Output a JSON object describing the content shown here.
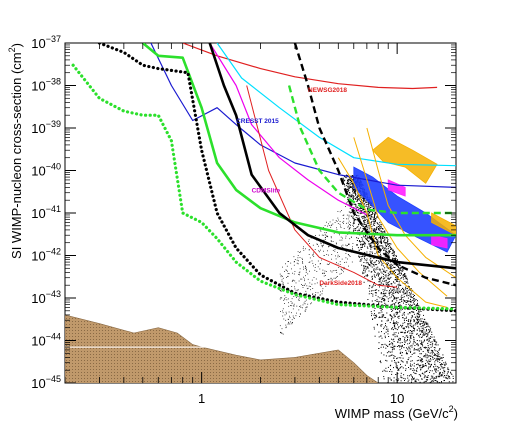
{
  "chart_data": {
    "type": "line",
    "title": "",
    "xlabel": "WIMP mass (GeV/c²)",
    "xlabel_main": "WIMP mass (GeV/c",
    "xlabel_sup": "2",
    "xlabel_tail": ")",
    "ylabel": "SI WIMP-nucleon cross-section (cm²)",
    "ylabel_main": "SI WIMP-nucleon cross-section (cm",
    "ylabel_sup": "2",
    "ylabel_tail": ")",
    "x_scale": "log",
    "y_scale": "log",
    "xlim": [
      0.2,
      20
    ],
    "ylim": [
      1e-45,
      1e-37
    ],
    "grid": false,
    "x_ticks": [
      {
        "v": 1,
        "label": "1"
      },
      {
        "v": 10,
        "label": "10"
      }
    ],
    "y_ticks": [
      {
        "v": 1e-37,
        "base": "10",
        "exp": "−37"
      },
      {
        "v": 1e-38,
        "base": "10",
        "exp": "−38"
      },
      {
        "v": 1e-39,
        "base": "10",
        "exp": "−39"
      },
      {
        "v": 1e-40,
        "base": "10",
        "exp": "−40"
      },
      {
        "v": 1e-41,
        "base": "10",
        "exp": "−41"
      },
      {
        "v": 1e-42,
        "base": "10",
        "exp": "−42"
      },
      {
        "v": 1e-43,
        "base": "10",
        "exp": "−43"
      },
      {
        "v": 1e-44,
        "base": "10",
        "exp": "−44"
      },
      {
        "v": 1e-45,
        "base": "10",
        "exp": "−45"
      }
    ],
    "labels": [
      {
        "text": "NEWSG2018",
        "color": "#e02020",
        "x": 3.5,
        "y": 7e-39
      },
      {
        "text": "CRESST 2015",
        "color": "#1a1ad0",
        "x": 1.5,
        "y": 1.3e-39
      },
      {
        "text": "CDMSlite",
        "color": "#cc00cc",
        "x": 1.8,
        "y": 3e-41
      },
      {
        "text": "DarkSide2018",
        "color": "#e02020",
        "x": 4.0,
        "y": 2e-43
      }
    ],
    "series": [
      {
        "color": "#1a1ad0",
        "style": "solid",
        "width": 1.2,
        "points": [
          [
            0.55,
            1e-37
          ],
          [
            0.7,
            1e-38
          ],
          [
            0.9,
            1.5e-39
          ],
          [
            1.2,
            3e-39
          ],
          [
            1.5,
            1.2e-39
          ],
          [
            2,
            4e-40
          ],
          [
            3,
            1.5e-40
          ],
          [
            5,
            8e-41
          ],
          [
            10,
            4.5e-41
          ],
          [
            20,
            4e-41
          ]
        ]
      },
      {
        "color": "#e02020",
        "style": "solid",
        "width": 1.2,
        "points": [
          [
            0.8,
            1e-37
          ],
          [
            1.2,
            5e-38
          ],
          [
            2,
            2.5e-38
          ],
          [
            3,
            1.6e-38
          ],
          [
            5,
            1.1e-38
          ],
          [
            8,
            9e-39
          ],
          [
            12,
            8.5e-39
          ],
          [
            16,
            9e-39
          ]
        ]
      },
      {
        "color": "#00e0ff",
        "style": "solid",
        "width": 1.2,
        "points": [
          [
            1.2,
            1e-37
          ],
          [
            1.6,
            1.5e-38
          ],
          [
            2.5,
            3e-39
          ],
          [
            4,
            6e-40
          ],
          [
            6,
            2e-40
          ],
          [
            10,
            1.4e-40
          ],
          [
            20,
            1.3e-40
          ]
        ]
      },
      {
        "color": "#ee00ee",
        "style": "solid",
        "width": 1.2,
        "points": [
          [
            1.1,
            1e-37
          ],
          [
            1.5,
            1e-38
          ],
          [
            1.8,
            1.2e-39
          ],
          [
            2.5,
            2e-40
          ],
          [
            3.5,
            6e-41
          ],
          [
            5,
            2e-41
          ],
          [
            7,
            9e-42
          ]
        ]
      },
      {
        "color": "#e02020",
        "style": "solid",
        "width": 1.0,
        "points": [
          [
            1.7,
            1e-38
          ],
          [
            2.2,
            1e-40
          ],
          [
            3,
            4e-42
          ],
          [
            4,
            9e-43
          ],
          [
            6,
            4e-43
          ],
          [
            8,
            2e-43
          ],
          [
            10,
            1.8e-43
          ]
        ]
      },
      {
        "color": "#f5b000",
        "style": "solid",
        "width": 1.0,
        "points": [
          [
            5,
            2e-40
          ],
          [
            6,
            5e-41
          ],
          [
            7,
            1e-41
          ],
          [
            8,
            1e-42
          ],
          [
            10,
            3e-43
          ],
          [
            14,
            8e-44
          ],
          [
            18,
            6e-44
          ]
        ]
      },
      {
        "color": "#f5b000",
        "style": "solid",
        "width": 1.0,
        "points": [
          [
            6,
            6e-40
          ],
          [
            7,
            6e-41
          ],
          [
            8,
            8e-42
          ],
          [
            10,
            1.5e-42
          ],
          [
            13,
            4e-43
          ],
          [
            18,
            1.1e-43
          ]
        ]
      },
      {
        "color": "#f5b000",
        "style": "solid",
        "width": 1.0,
        "points": [
          [
            7,
            1e-39
          ],
          [
            8,
            1e-40
          ],
          [
            9,
            1.5e-41
          ],
          [
            11,
            3e-42
          ],
          [
            14,
            9e-43
          ],
          [
            20,
            3e-43
          ]
        ]
      },
      {
        "color": "#2ce02c",
        "style": "solid",
        "width": 2.6,
        "points": [
          [
            0.5,
            1e-37
          ],
          [
            0.6,
            5e-38
          ],
          [
            0.8,
            4.5e-38
          ],
          [
            1,
            3e-39
          ],
          [
            1.2,
            1.5e-40
          ],
          [
            1.5,
            3.5e-41
          ],
          [
            2,
            1.3e-41
          ],
          [
            3,
            6e-42
          ],
          [
            5,
            3.5e-42
          ],
          [
            10,
            3e-42
          ],
          [
            20,
            3e-42
          ]
        ]
      },
      {
        "color": "#000000",
        "style": "solid",
        "width": 2.6,
        "points": [
          [
            1.1,
            1e-37
          ],
          [
            1.3,
            1e-38
          ],
          [
            1.5,
            2e-39
          ],
          [
            1.8,
            8e-41
          ],
          [
            2.5,
            1e-41
          ],
          [
            3.5,
            3e-42
          ],
          [
            5,
            1.5e-42
          ],
          [
            10,
            7e-43
          ],
          [
            20,
            5e-43
          ]
        ]
      },
      {
        "color": "#000000",
        "style": "dotted",
        "width": 3.2,
        "points": [
          [
            0.3,
            1e-37
          ],
          [
            0.4,
            6e-38
          ],
          [
            0.5,
            3e-38
          ],
          [
            0.6,
            2.5e-38
          ],
          [
            0.85,
            2e-38
          ],
          [
            1,
            3e-40
          ],
          [
            1.2,
            1e-41
          ],
          [
            1.5,
            1.5e-42
          ],
          [
            2,
            3.5e-43
          ],
          [
            3,
            1.3e-43
          ],
          [
            5,
            8e-44
          ],
          [
            10,
            6e-44
          ],
          [
            20,
            5e-44
          ]
        ]
      },
      {
        "color": "#2ce02c",
        "style": "dotted",
        "width": 3.2,
        "points": [
          [
            0.22,
            3e-38
          ],
          [
            0.3,
            5e-39
          ],
          [
            0.4,
            2.5e-39
          ],
          [
            0.5,
            2e-39
          ],
          [
            0.6,
            2e-39
          ],
          [
            0.7,
            5e-40
          ],
          [
            0.8,
            1e-41
          ],
          [
            1,
            6e-42
          ],
          [
            1.2,
            2.5e-42
          ],
          [
            1.5,
            7e-43
          ],
          [
            2,
            2.5e-43
          ],
          [
            3,
            1.2e-43
          ],
          [
            5,
            7e-44
          ],
          [
            10,
            6e-44
          ],
          [
            20,
            5.5e-44
          ]
        ]
      },
      {
        "color": "#000000",
        "style": "dashed",
        "width": 2.4,
        "points": [
          [
            3,
            1e-37
          ],
          [
            3.5,
            1e-38
          ],
          [
            4,
            1e-39
          ],
          [
            5,
            1e-40
          ],
          [
            6,
            1e-41
          ],
          [
            8,
            1.5e-42
          ],
          [
            10,
            6e-43
          ],
          [
            14,
            3e-43
          ],
          [
            20,
            2e-43
          ]
        ]
      },
      {
        "color": "#2ce02c",
        "style": "dashed",
        "width": 2.4,
        "points": [
          [
            2.8,
            1e-38
          ],
          [
            3.2,
            1e-39
          ],
          [
            4,
            1e-40
          ],
          [
            5,
            3e-41
          ],
          [
            7,
            1.2e-41
          ],
          [
            10,
            1e-41
          ],
          [
            20,
            1e-41
          ]
        ]
      }
    ],
    "regions": [
      {
        "color": "#f5b000",
        "opacity": 0.85,
        "points": [
          [
            9,
            6e-40
          ],
          [
            12,
            3e-40
          ],
          [
            16,
            1.4e-40
          ],
          [
            14,
            5e-41
          ],
          [
            11,
            1.2e-40
          ],
          [
            8.5,
            1.6e-40
          ],
          [
            7.5,
            3e-40
          ]
        ]
      },
      {
        "color": "#2040ff",
        "opacity": 0.9,
        "points": [
          [
            6,
            1.2e-40
          ],
          [
            7.5,
            7e-41
          ],
          [
            10,
            2.5e-41
          ],
          [
            14,
            1e-41
          ],
          [
            20,
            3e-42
          ],
          [
            18,
            1.2e-42
          ],
          [
            12,
            3e-42
          ],
          [
            9,
            6e-42
          ],
          [
            7,
            2e-41
          ],
          [
            6,
            4e-41
          ]
        ]
      },
      {
        "color": "#ff20ff",
        "opacity": 0.9,
        "points": [
          [
            9,
            6e-41
          ],
          [
            11,
            4e-41
          ],
          [
            11,
            2.5e-41
          ],
          [
            9,
            3.5e-41
          ]
        ]
      },
      {
        "color": "#ff20ff",
        "opacity": 0.9,
        "points": [
          [
            15,
            3e-42
          ],
          [
            18,
            2.5e-42
          ],
          [
            18,
            1.5e-42
          ],
          [
            15,
            1.8e-42
          ]
        ]
      },
      {
        "color": "#f5b000",
        "opacity": 0.85,
        "points": [
          [
            15,
            1e-41
          ],
          [
            20,
            5e-42
          ],
          [
            20,
            3e-42
          ],
          [
            15,
            6e-42
          ]
        ]
      }
    ],
    "neutrino_floor": {
      "color": "#c0996b",
      "points": [
        [
          0.2,
          4e-44
        ],
        [
          0.3,
          2.5e-44
        ],
        [
          0.45,
          1.5e-44
        ],
        [
          0.6,
          2e-44
        ],
        [
          0.75,
          1.5e-44
        ],
        [
          0.9,
          8e-45
        ],
        [
          1,
          7e-45
        ],
        [
          1.5,
          4.5e-45
        ],
        [
          2,
          3.5e-45
        ],
        [
          3,
          4e-45
        ],
        [
          5,
          6e-45
        ],
        [
          6,
          3e-45
        ],
        [
          7,
          1.5e-45
        ],
        [
          8,
          1e-45
        ]
      ]
    },
    "scatter": {
      "description_free": true,
      "color": "#000000"
    }
  }
}
